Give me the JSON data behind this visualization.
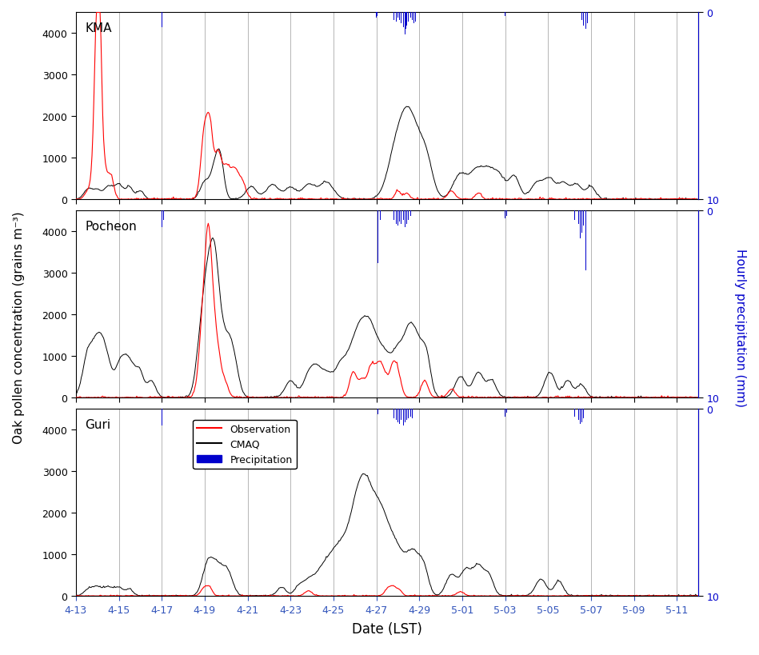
{
  "xlabel": "Date (LST)",
  "ylabel_left": "Oak pollen concentration (grains m⁻³)",
  "ylabel_right": "Hourly precipitation (mm)",
  "sites": [
    "KMA",
    "Pocheon",
    "Guri"
  ],
  "n_hours": 696,
  "xtick_labels": [
    "4-13",
    "4-15",
    "4-17",
    "4-19",
    "4-21",
    "4-23",
    "4-25",
    "4-27",
    "4-29",
    "5-01",
    "5-03",
    "5-05",
    "5-07",
    "5-09",
    "5-11"
  ],
  "ylim_pollen": [
    0,
    4500
  ],
  "ylim_precip": [
    10,
    0
  ],
  "yticks_pollen": [
    0,
    1000,
    2000,
    3000,
    4000
  ],
  "obs_color": "#ff0000",
  "cmaq_color": "#000000",
  "precip_color": "#0000cc",
  "grid_color": "#999999",
  "background_color": "#ffffff"
}
